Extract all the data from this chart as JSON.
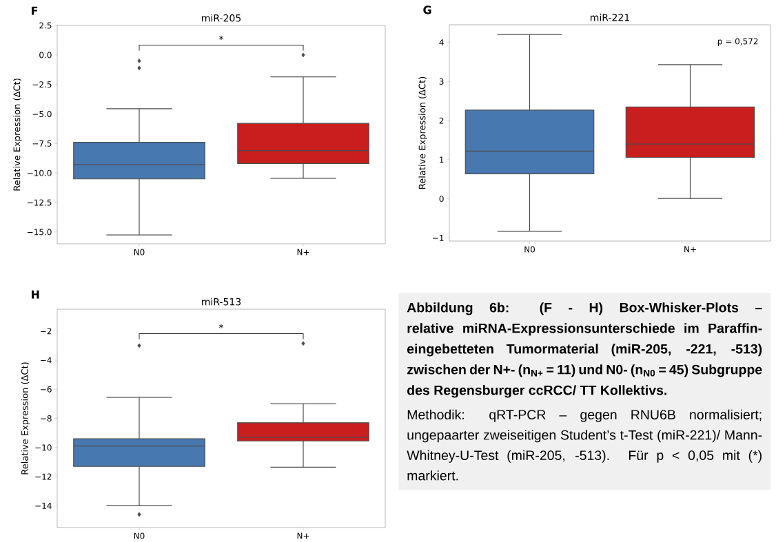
{
  "chart_data": [
    {
      "type": "box",
      "title": "miR-205",
      "ylabel": "Relative Expression (ΔCt)",
      "categories": [
        "N0",
        "N+"
      ],
      "colors": [
        "#4878b0",
        "#c81e1e"
      ],
      "marker": "diamond",
      "ylim": [
        -16.0,
        2.5
      ],
      "yticks": [
        2.5,
        {
          "value": 0,
          "label": "0.0"
        },
        {
          "value": -2.5,
          "label": "−2.5"
        },
        {
          "value": -5,
          "label": "−5.0"
        },
        {
          "value": -7.5,
          "label": "−7.5"
        },
        {
          "value": -10,
          "label": "−10.0"
        },
        {
          "value": -12.5,
          "label": "−12.5"
        },
        {
          "value": -15,
          "label": "−15.0"
        }
      ],
      "boxes": [
        {
          "low": -15.25,
          "q1": -10.5,
          "median": -9.3,
          "q3": -7.4,
          "high": -4.55,
          "outliers": [
            -0.5,
            -1.1
          ]
        },
        {
          "low": -10.45,
          "q1": -9.2,
          "median": -8.1,
          "q3": -5.8,
          "high": -1.85,
          "outliers": [
            0.0
          ]
        }
      ],
      "annotations": [
        "F",
        "*"
      ]
    },
    {
      "type": "box",
      "title": "miR-221",
      "ylabel": "Relative Expression (ΔCt)",
      "categories": [
        "N0",
        "N+"
      ],
      "colors": [
        "#4878b0",
        "#c81e1e"
      ],
      "marker": "diamond",
      "ylim": [
        -1.08,
        4.45
      ],
      "yticks": [
        {
          "value": -1,
          "label": "−1"
        },
        0,
        1,
        2,
        3,
        4
      ],
      "boxes": [
        {
          "low": -0.83,
          "q1": 0.64,
          "median": 1.22,
          "q3": 2.27,
          "high": 4.2
        },
        {
          "low": 0.01,
          "q1": 1.06,
          "median": 1.4,
          "q3": 2.35,
          "high": 3.43
        }
      ],
      "annotations": [
        "G",
        "p = 0,572"
      ]
    },
    {
      "type": "box",
      "title": "miR-513",
      "ylabel": "Relative Expression (ΔCt)",
      "categories": [
        "N0",
        "N+"
      ],
      "colors": [
        "#4878b0",
        "#c81e1e"
      ],
      "marker": "diamond",
      "ylim": [
        -15.5,
        -0.5
      ],
      "yticks": [
        {
          "value": -2,
          "label": "−2"
        },
        {
          "value": -4,
          "label": "−4"
        },
        {
          "value": -6,
          "label": "−6"
        },
        {
          "value": -8,
          "label": "−8"
        },
        {
          "value": -10,
          "label": "−10"
        },
        {
          "value": -12,
          "label": "−12"
        },
        {
          "value": -14,
          "label": "−14"
        }
      ],
      "boxes": [
        {
          "low": -14.0,
          "q1": -11.3,
          "median": -9.9,
          "q3": -9.4,
          "high": -6.55,
          "outliers": [
            -3.0,
            -14.6
          ]
        },
        {
          "low": -11.35,
          "q1": -9.55,
          "median": -9.3,
          "q3": -8.3,
          "high": -7.0,
          "outliers": [
            -2.85
          ]
        }
      ],
      "annotations": [
        "H",
        "*"
      ]
    },
    {
      "type": "other",
      "title": "Abbildung 6b: (F - H) Box-Whisker-Plots – relative miRNA-Expressionsunterschiede im Paraffin-eingebetteten Tumormaterial (miR-205, -221, -513) zwischen der N+- (n$_{N+}$ = 11) und N0- (n$_{N0}$ = 45) Subgruppe des Regensburger ccRCC/ TT Kollektivs.",
      "annotations": [
        "Methodik: qRT-PCR – gegen RNU6B normalisiert; ungepaarter zweiseitigen Student’s t-Test (miR-221)/ Mann-Whitney-U-Test (miR-205, -513). Für p < 0,05 mit (*) markiert."
      ]
    }
  ]
}
